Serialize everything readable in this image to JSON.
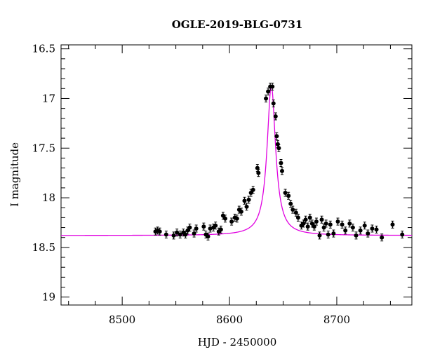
{
  "chart_data": {
    "type": "scatter",
    "title": "OGLE-2019-BLG-0731",
    "xlabel": "HJD - 2450000",
    "ylabel": "I magnitude",
    "xlim": [
      8443,
      8770
    ],
    "ylim": [
      19.08,
      16.46
    ],
    "y_inverted": true,
    "x_ticks": [
      8500,
      8600,
      8700
    ],
    "y_ticks": [
      16.5,
      17,
      17.5,
      18,
      18.5,
      19
    ],
    "y_tick_labels": [
      "16.5",
      "17",
      "17.5",
      "18",
      "18.5",
      "19"
    ],
    "grid": false,
    "legend": "none",
    "colors": {
      "points": "#000000",
      "model": "#e000e0"
    },
    "model": {
      "t0": 8639.0,
      "base_mag": 18.38,
      "peak_mag": 16.87,
      "half_width_days": 4.8
    },
    "series": [
      {
        "x": [
          8531,
          8533,
          8535,
          8541,
          8548,
          8551,
          8554,
          8557,
          8559,
          8561,
          8563,
          8567,
          8569,
          8576,
          8578,
          8580,
          8582,
          8585,
          8587,
          8590,
          8592,
          8594,
          8596,
          8602,
          8605,
          8607,
          8609,
          8611,
          8614,
          8616,
          8618,
          8620,
          8622,
          8626,
          8627,
          8634,
          8636,
          8638,
          8640,
          8641,
          8643,
          8644,
          8645,
          8646,
          8648,
          8649,
          8652,
          8655,
          8657,
          8659,
          8662,
          8664,
          8667,
          8669,
          8671,
          8673,
          8675,
          8677,
          8679,
          8681,
          8684,
          8686,
          8688,
          8690,
          8692,
          8694,
          8697,
          8701,
          8705,
          8708,
          8712,
          8715,
          8718,
          8722,
          8726,
          8729,
          8733,
          8737,
          8742,
          8752,
          8761
        ],
        "y": [
          18.34,
          18.33,
          18.34,
          18.37,
          18.38,
          18.35,
          18.37,
          18.35,
          18.37,
          18.33,
          18.3,
          18.36,
          18.31,
          18.29,
          18.37,
          18.39,
          18.31,
          18.3,
          18.28,
          18.34,
          18.32,
          18.18,
          18.21,
          18.24,
          18.2,
          18.21,
          18.12,
          18.14,
          18.03,
          18.09,
          18.02,
          17.95,
          17.92,
          17.7,
          17.75,
          17.0,
          16.93,
          16.88,
          16.88,
          17.05,
          17.18,
          17.38,
          17.46,
          17.5,
          17.65,
          17.73,
          17.95,
          17.98,
          18.06,
          18.12,
          18.15,
          18.2,
          18.28,
          18.26,
          18.22,
          18.29,
          18.2,
          18.26,
          18.29,
          18.24,
          18.38,
          18.22,
          18.3,
          18.26,
          18.37,
          18.27,
          18.36,
          18.24,
          18.27,
          18.33,
          18.26,
          18.3,
          18.38,
          18.33,
          18.28,
          18.36,
          18.31,
          18.32,
          18.4,
          18.27,
          18.37
        ]
      }
    ]
  }
}
